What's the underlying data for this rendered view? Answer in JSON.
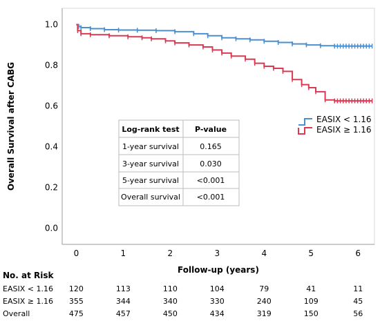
{
  "chart_data": {
    "type": "line",
    "subtype": "kaplan-meier",
    "xlabel": "Follow-up (years)",
    "ylabel": "Overall Survival after CABG",
    "xlim": [
      -0.3,
      6.35
    ],
    "ylim": [
      -0.08,
      1.08
    ],
    "x_ticks": [
      "0",
      "1",
      "2",
      "3",
      "4",
      "5",
      "6"
    ],
    "y_ticks": [
      "0.0",
      "0.2",
      "0.4",
      "0.6",
      "0.8",
      "1.0"
    ],
    "legend_position": "right",
    "series": [
      {
        "name": "EASIX < 1.16",
        "color": "#4a8fcf",
        "points": [
          [
            0,
            1.0
          ],
          [
            0.05,
            0.99
          ],
          [
            0.1,
            0.985
          ],
          [
            0.3,
            0.98
          ],
          [
            0.6,
            0.975
          ],
          [
            0.9,
            0.973
          ],
          [
            1.3,
            0.972
          ],
          [
            1.7,
            0.97
          ],
          [
            2.1,
            0.965
          ],
          [
            2.5,
            0.955
          ],
          [
            2.8,
            0.945
          ],
          [
            3.1,
            0.935
          ],
          [
            3.4,
            0.93
          ],
          [
            3.7,
            0.925
          ],
          [
            4.0,
            0.918
          ],
          [
            4.3,
            0.912
          ],
          [
            4.6,
            0.905
          ],
          [
            4.9,
            0.9
          ],
          [
            5.2,
            0.896
          ],
          [
            5.5,
            0.894
          ],
          [
            6.3,
            0.894
          ]
        ]
      },
      {
        "name": "EASIX ≥ 1.16",
        "color": "#d93a52",
        "points": [
          [
            0,
            1.0
          ],
          [
            0.03,
            0.97
          ],
          [
            0.1,
            0.955
          ],
          [
            0.3,
            0.95
          ],
          [
            0.7,
            0.945
          ],
          [
            1.1,
            0.94
          ],
          [
            1.4,
            0.935
          ],
          [
            1.6,
            0.93
          ],
          [
            1.9,
            0.92
          ],
          [
            2.1,
            0.91
          ],
          [
            2.4,
            0.9
          ],
          [
            2.7,
            0.89
          ],
          [
            2.9,
            0.875
          ],
          [
            3.1,
            0.86
          ],
          [
            3.3,
            0.845
          ],
          [
            3.6,
            0.83
          ],
          [
            3.8,
            0.81
          ],
          [
            4.0,
            0.795
          ],
          [
            4.2,
            0.785
          ],
          [
            4.4,
            0.77
          ],
          [
            4.6,
            0.73
          ],
          [
            4.8,
            0.705
          ],
          [
            4.95,
            0.69
          ],
          [
            5.1,
            0.67
          ],
          [
            5.3,
            0.63
          ],
          [
            5.5,
            0.625
          ],
          [
            6.3,
            0.625
          ]
        ]
      }
    ]
  },
  "logrank_table": {
    "headers": [
      "Log-rank test",
      "P-value"
    ],
    "rows": [
      [
        "1-year survival",
        "0.165"
      ],
      [
        "3-year survival",
        "0.030"
      ],
      [
        "5-year survival",
        "<0.001"
      ],
      [
        "Overall survival",
        "<0.001"
      ]
    ]
  },
  "risk_table": {
    "title": "No. at Risk",
    "rows": [
      {
        "label": "EASIX < 1.16",
        "values": [
          "120",
          "113",
          "110",
          "104",
          "79",
          "41",
          "11"
        ]
      },
      {
        "label": "EASIX ≥ 1.16",
        "values": [
          "355",
          "344",
          "340",
          "330",
          "240",
          "109",
          "45"
        ]
      },
      {
        "label": "Overall",
        "values": [
          "475",
          "457",
          "450",
          "434",
          "319",
          "150",
          "56"
        ]
      }
    ]
  }
}
